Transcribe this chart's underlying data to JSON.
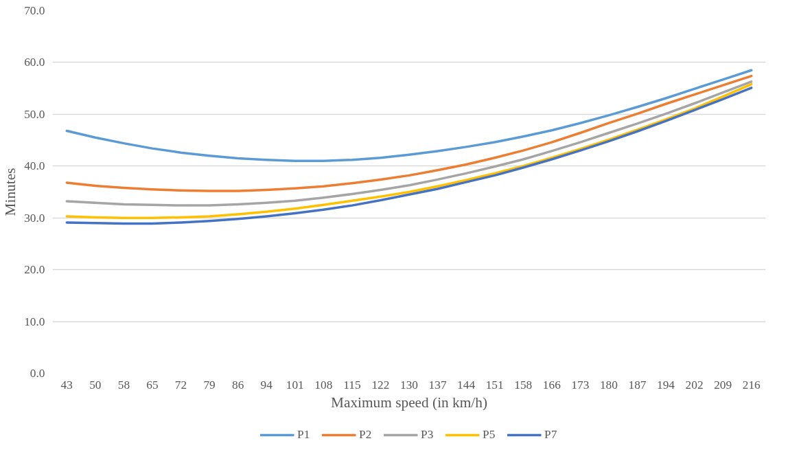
{
  "chart_data": {
    "type": "line",
    "xlabel": "Maximum speed (in km/h)",
    "ylabel": "Minutes",
    "categories": [
      "43",
      "50",
      "58",
      "65",
      "72",
      "79",
      "86",
      "94",
      "101",
      "108",
      "115",
      "122",
      "130",
      "137",
      "144",
      "151",
      "158",
      "166",
      "173",
      "180",
      "187",
      "194",
      "202",
      "209",
      "216"
    ],
    "series": [
      {
        "name": "P1",
        "color": "#5b9bd5",
        "values": [
          46.8,
          45.5,
          44.4,
          43.4,
          42.6,
          42.0,
          41.5,
          41.2,
          41.0,
          41.0,
          41.2,
          41.6,
          42.2,
          42.9,
          43.7,
          44.6,
          45.7,
          46.9,
          48.3,
          49.8,
          51.4,
          53.1,
          54.9,
          56.7,
          58.5
        ]
      },
      {
        "name": "P2",
        "color": "#ed7d31",
        "values": [
          36.8,
          36.2,
          35.8,
          35.5,
          35.3,
          35.2,
          35.2,
          35.4,
          35.7,
          36.1,
          36.7,
          37.4,
          38.2,
          39.2,
          40.3,
          41.6,
          43.0,
          44.6,
          46.4,
          48.3,
          50.1,
          52.0,
          53.8,
          55.6,
          57.4
        ]
      },
      {
        "name": "P3",
        "color": "#a5a5a5",
        "values": [
          33.2,
          32.9,
          32.6,
          32.5,
          32.4,
          32.4,
          32.6,
          32.9,
          33.3,
          33.9,
          34.6,
          35.4,
          36.3,
          37.4,
          38.6,
          39.9,
          41.3,
          42.9,
          44.6,
          46.4,
          48.2,
          50.1,
          52.1,
          54.2,
          56.3
        ]
      },
      {
        "name": "P5",
        "color": "#ffc000",
        "values": [
          30.3,
          30.1,
          30.0,
          30.0,
          30.1,
          30.3,
          30.7,
          31.2,
          31.8,
          32.5,
          33.3,
          34.1,
          35.0,
          36.1,
          37.3,
          38.6,
          40.0,
          41.6,
          43.3,
          45.1,
          47.0,
          49.0,
          51.1,
          53.4,
          55.8
        ]
      },
      {
        "name": "P7",
        "color": "#4472c4",
        "values": [
          29.1,
          29.0,
          28.9,
          28.9,
          29.1,
          29.4,
          29.8,
          30.3,
          30.9,
          31.6,
          32.4,
          33.4,
          34.5,
          35.6,
          36.9,
          38.2,
          39.7,
          41.3,
          43.0,
          44.8,
          46.7,
          48.7,
          50.8,
          52.9,
          55.1
        ]
      }
    ],
    "ylim": [
      0,
      70
    ],
    "yticks": [
      {
        "value": 0,
        "label": "0.0"
      },
      {
        "value": 10,
        "label": "10.0"
      },
      {
        "value": 20,
        "label": "20.0"
      },
      {
        "value": 30,
        "label": "30.0"
      },
      {
        "value": 40,
        "label": "40.0"
      },
      {
        "value": 50,
        "label": "50.0"
      },
      {
        "value": 60,
        "label": "60.0"
      },
      {
        "value": 70,
        "label": "70.0"
      }
    ],
    "grid": "y",
    "legend": "bottom",
    "line_style": "solid",
    "marker": "none"
  }
}
